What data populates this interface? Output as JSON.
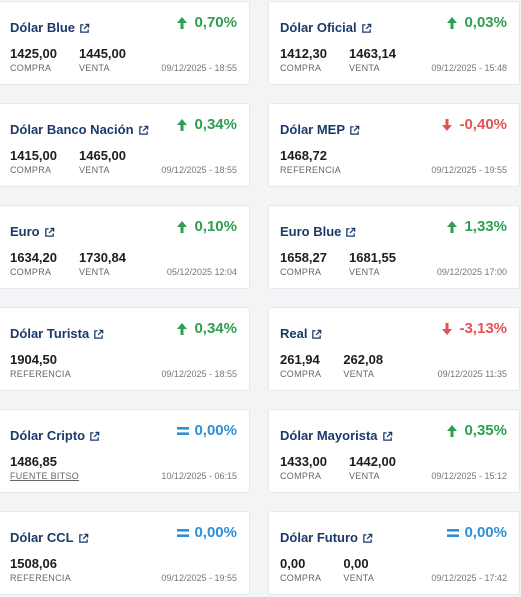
{
  "cards": [
    {
      "name": "Dólar Blue",
      "variation": "0,70%",
      "trend": "up",
      "values": [
        {
          "num": "1425,00",
          "label": "COMPRA"
        },
        {
          "num": "1445,00",
          "label": "VENTA"
        }
      ],
      "date": "09/12/2025 - 18:55"
    },
    {
      "name": "Dólar Oficial",
      "variation": "0,03%",
      "trend": "up",
      "values": [
        {
          "num": "1412,30",
          "label": "COMPRA"
        },
        {
          "num": "1463,14",
          "label": "VENTA"
        }
      ],
      "date": "09/12/2025 - 15:48"
    },
    {
      "name": "Dólar Banco Nación",
      "variation": "0,34%",
      "trend": "up",
      "values": [
        {
          "num": "1415,00",
          "label": "COMPRA"
        },
        {
          "num": "1465,00",
          "label": "VENTA"
        }
      ],
      "date": "09/12/2025 - 18:55"
    },
    {
      "name": "Dólar MEP",
      "variation": "-0,40%",
      "trend": "down",
      "values": [
        {
          "num": "1468,72",
          "label": "REFERENCIA"
        }
      ],
      "date": "09/12/2025 - 19:55"
    },
    {
      "name": "Euro",
      "variation": "0,10%",
      "trend": "up",
      "values": [
        {
          "num": "1634,20",
          "label": "COMPRA"
        },
        {
          "num": "1730,84",
          "label": "VENTA"
        }
      ],
      "date": "05/12/2025 12:04"
    },
    {
      "name": "Euro Blue",
      "variation": "1,33%",
      "trend": "up",
      "values": [
        {
          "num": "1658,27",
          "label": "COMPRA"
        },
        {
          "num": "1681,55",
          "label": "VENTA"
        }
      ],
      "date": "09/12/2025 17:00"
    },
    {
      "name": "Dólar Turista",
      "variation": "0,34%",
      "trend": "up",
      "values": [
        {
          "num": "1904,50",
          "label": "REFERENCIA"
        }
      ],
      "date": "09/12/2025 - 18:55"
    },
    {
      "name": "Real",
      "variation": "-3,13%",
      "trend": "down",
      "values": [
        {
          "num": "261,94",
          "label": "COMPRA"
        },
        {
          "num": "262,08",
          "label": "VENTA"
        }
      ],
      "date": "09/12/2025 11:35"
    },
    {
      "name": "Dólar Cripto",
      "variation": "0,00%",
      "trend": "eq",
      "values": [
        {
          "num": "1486,85",
          "label": "FUENTE BITSO",
          "underline": true
        }
      ],
      "date": "10/12/2025 - 06:15"
    },
    {
      "name": "Dólar Mayorista",
      "variation": "0,35%",
      "trend": "up",
      "values": [
        {
          "num": "1433,00",
          "label": "COMPRA"
        },
        {
          "num": "1442,00",
          "label": "VENTA"
        }
      ],
      "date": "09/12/2025 - 15:12"
    },
    {
      "name": "Dólar CCL",
      "variation": "0,00%",
      "trend": "eq",
      "values": [
        {
          "num": "1508,06",
          "label": "REFERENCIA"
        }
      ],
      "date": "09/12/2025 - 19:55"
    },
    {
      "name": "Dólar Futuro",
      "variation": "0,00%",
      "trend": "eq",
      "values": [
        {
          "num": "0,00",
          "label": "COMPRA"
        },
        {
          "num": "0,00",
          "label": "VENTA"
        }
      ],
      "date": "09/12/2025 - 17:42"
    }
  ],
  "colors": {
    "up": "#2e9e4f",
    "down": "#e05454",
    "eq": "#2f8fd6",
    "title": "#1b3a6b"
  },
  "icons": {
    "external": "external-link-icon",
    "up": "arrow-up-icon",
    "down": "arrow-down-icon",
    "eq": "equals-icon"
  }
}
